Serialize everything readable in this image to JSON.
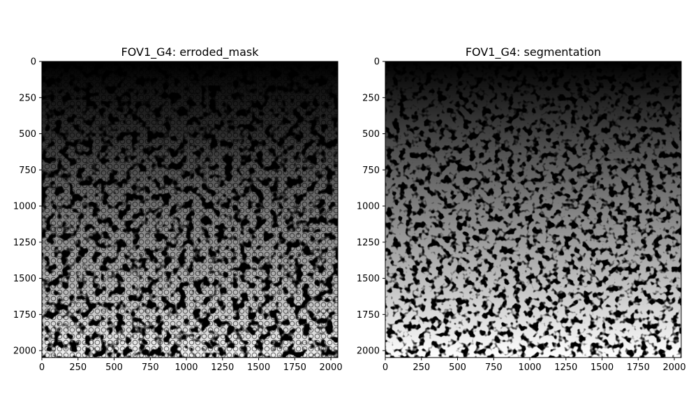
{
  "chart_data": [
    {
      "type": "heatmap",
      "title": "FOV1_G4: erroded_mask",
      "xlabel": "",
      "ylabel": "",
      "xlim": [
        0,
        2048
      ],
      "ylim": [
        2048,
        0
      ],
      "xticks": [
        0,
        250,
        500,
        750,
        1000,
        1250,
        1500,
        1750,
        2000
      ],
      "yticks": [
        0,
        250,
        500,
        750,
        1000,
        1250,
        1500,
        1750,
        2000
      ],
      "colormap": "gray",
      "grid": false,
      "values_description": "grayscale label image of segmented cells with dark borders; intensity increases from top (black) to bottom (white)"
    },
    {
      "type": "heatmap",
      "title": "FOV1_G4: segmentation",
      "xlabel": "",
      "ylabel": "",
      "xlim": [
        0,
        2048
      ],
      "ylim": [
        2048,
        0
      ],
      "xticks": [
        0,
        250,
        500,
        750,
        1000,
        1250,
        1500,
        1750,
        2000
      ],
      "yticks": [
        0,
        250,
        500,
        750,
        1000,
        1250,
        1500,
        1750,
        2000
      ],
      "colormap": "gray",
      "grid": false,
      "values_description": "grayscale label image of segmented cells; intensity increases from top (black) to bottom (white)"
    }
  ]
}
